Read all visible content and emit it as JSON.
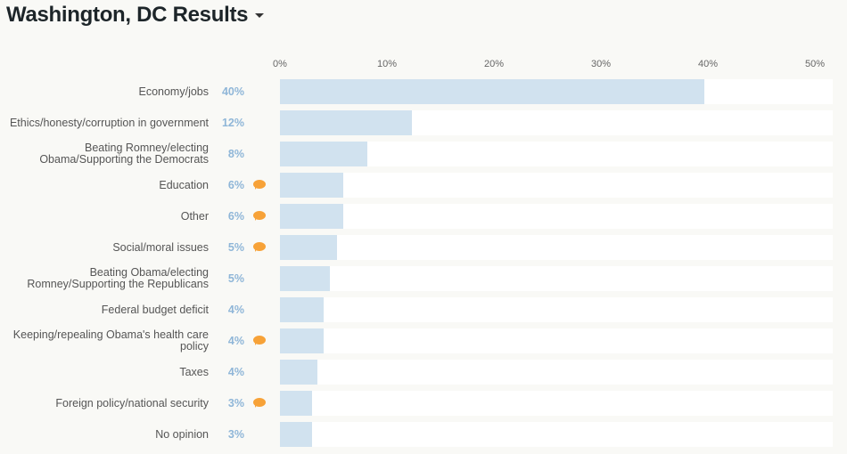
{
  "header": {
    "title": "Washington, DC Results"
  },
  "chart_data": {
    "type": "bar",
    "orientation": "horizontal",
    "title": "Washington, DC Results",
    "xlim": [
      0,
      50
    ],
    "ticks": [
      "0%",
      "10%",
      "20%",
      "30%",
      "40%",
      "50%"
    ],
    "tick_values": [
      0,
      10,
      20,
      30,
      40,
      50
    ],
    "bar_color": "#d1e2ef",
    "label_color": "#8fb6d8",
    "comment_icon_color": "#f7a238",
    "categories": [
      {
        "label": "Economy/jobs",
        "pct": "40%",
        "value": 39.7,
        "comment": false
      },
      {
        "label": "Ethics/honesty/corruption in government",
        "pct": "12%",
        "value": 12.3,
        "comment": false
      },
      {
        "label": "Beating Romney/electing Obama/Supporting the Democrats",
        "pct": "8%",
        "value": 8.2,
        "comment": false
      },
      {
        "label": "Education",
        "pct": "6%",
        "value": 5.9,
        "comment": true
      },
      {
        "label": "Other",
        "pct": "6%",
        "value": 5.9,
        "comment": true
      },
      {
        "label": "Social/moral issues",
        "pct": "5%",
        "value": 5.3,
        "comment": true
      },
      {
        "label": "Beating Obama/electing Romney/Supporting the Republicans",
        "pct": "5%",
        "value": 4.7,
        "comment": false
      },
      {
        "label": "Federal budget deficit",
        "pct": "4%",
        "value": 4.1,
        "comment": false
      },
      {
        "label": "Keeping/repealing Obama's health care policy",
        "pct": "4%",
        "value": 4.1,
        "comment": true
      },
      {
        "label": "Taxes",
        "pct": "4%",
        "value": 3.5,
        "comment": false
      },
      {
        "label": "Foreign policy/national security",
        "pct": "3%",
        "value": 3.0,
        "comment": true
      },
      {
        "label": "No opinion",
        "pct": "3%",
        "value": 3.0,
        "comment": false
      }
    ]
  }
}
